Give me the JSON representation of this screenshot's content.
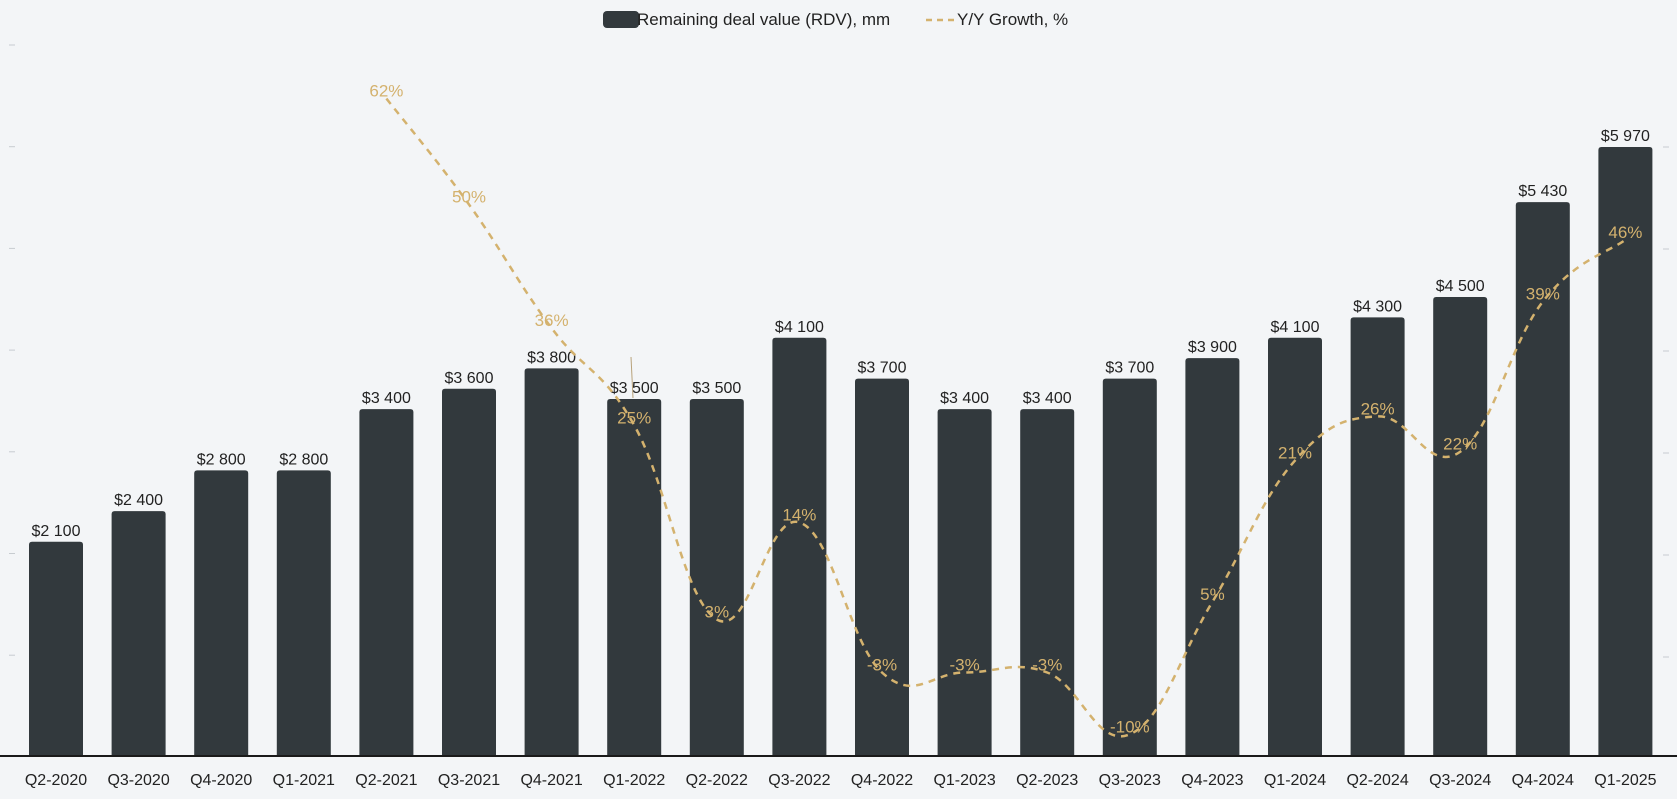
{
  "chart_data": {
    "type": "bar",
    "categories": [
      "Q2-2020",
      "Q3-2020",
      "Q4-2020",
      "Q1-2021",
      "Q2-2021",
      "Q3-2021",
      "Q4-2021",
      "Q1-2022",
      "Q2-2022",
      "Q3-2022",
      "Q4-2022",
      "Q1-2023",
      "Q2-2023",
      "Q3-2023",
      "Q4-2023",
      "Q1-2024",
      "Q2-2024",
      "Q3-2024",
      "Q4-2024",
      "Q1-2025"
    ],
    "series": [
      {
        "name": "Remaining deal value (RDV), mm",
        "kind": "bar",
        "values": [
          2100,
          2400,
          2800,
          2800,
          3400,
          3600,
          3800,
          3500,
          3500,
          4100,
          3700,
          3400,
          3400,
          3700,
          3900,
          4100,
          4300,
          4500,
          5430,
          5970
        ],
        "labels": [
          "$2 100",
          "$2 400",
          "$2 800",
          "$2 800",
          "$3 400",
          "$3 600",
          "$3 800",
          "$3 500",
          "$3 500",
          "$4 100",
          "$3 700",
          "$3 400",
          "$3 400",
          "$3 700",
          "$3 900",
          "$4 100",
          "$4 300",
          "$4 500",
          "$5 430",
          "$5 970"
        ]
      },
      {
        "name": "Y/Y Growth, %",
        "kind": "line",
        "style": "dashed",
        "values": [
          null,
          null,
          null,
          null,
          62,
          50,
          36,
          25,
          3,
          14,
          -3,
          -3,
          -3,
          -10,
          5,
          21,
          26,
          22,
          39,
          46
        ],
        "labels": [
          null,
          null,
          null,
          null,
          "62%",
          "50%",
          "36%",
          "25%",
          "3%",
          "14%",
          "-3%",
          "-3%",
          "-3%",
          "-10%",
          "5%",
          "21%",
          "26%",
          "22%",
          "39%",
          "46%"
        ]
      }
    ],
    "bar_axis": {
      "min": 0,
      "max": 7000
    },
    "growth_axis": {
      "min": -20,
      "max": 70
    },
    "legend": {
      "position": "top-center"
    },
    "colors": {
      "bar": "#32393d",
      "line": "#d4b26e",
      "background": "#f3f5f7",
      "text": "#222222"
    }
  }
}
